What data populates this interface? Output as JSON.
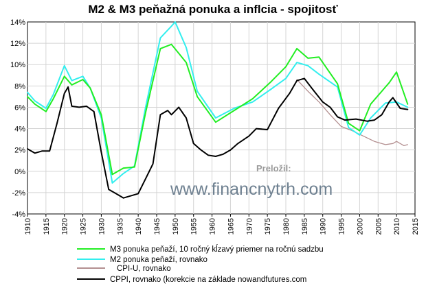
{
  "chart_data": {
    "type": "line",
    "title": "M2 & M3 peňažná ponuka a inflcia - spojitosť",
    "xlabel": "",
    "ylabel": "",
    "xlim": [
      1910,
      2015
    ],
    "ylim": [
      -4,
      14
    ],
    "grid": true,
    "yticks": [
      "-4%",
      "-2%",
      "0%",
      "2%",
      "4%",
      "6%",
      "8%",
      "10%",
      "12%",
      "14%"
    ],
    "ytick_values": [
      -4,
      -2,
      0,
      2,
      4,
      6,
      8,
      10,
      12,
      14
    ],
    "xticks": [
      "1910",
      "1915",
      "1920",
      "1925",
      "1930",
      "1935",
      "1940",
      "1945",
      "1950",
      "1955",
      "1960",
      "1965",
      "1970",
      "1975",
      "1980",
      "1985",
      "1990",
      "1995",
      "2000",
      "2005",
      "2010",
      "2015"
    ],
    "xtick_values": [
      1910,
      1915,
      1920,
      1925,
      1930,
      1935,
      1940,
      1945,
      1950,
      1955,
      1960,
      1965,
      1970,
      1975,
      1980,
      1985,
      1990,
      1995,
      2000,
      2005,
      2010,
      2015
    ],
    "legend_position": "bottom",
    "series": [
      {
        "name": "M3 ponuka peňaží, 10 ročný kĺzavý priemer na ročnú sadzbu",
        "color": "#22ee22",
        "x": [
          1910,
          1912,
          1915,
          1917,
          1920,
          1922,
          1925,
          1927,
          1930,
          1933,
          1936,
          1939,
          1942,
          1946,
          1949,
          1953,
          1956,
          1961,
          1966,
          1971,
          1976,
          1980,
          1983,
          1986,
          1989,
          1994,
          1997,
          2000,
          2003,
          2007,
          2008,
          2010,
          2013
        ],
        "y": [
          7.0,
          6.3,
          5.6,
          6.8,
          8.9,
          8.1,
          8.6,
          7.8,
          5.3,
          -0.3,
          0.3,
          0.4,
          5.5,
          11.5,
          11.9,
          10.2,
          7.0,
          4.6,
          5.7,
          6.8,
          8.4,
          9.8,
          11.5,
          10.6,
          10.7,
          8.2,
          4.5,
          3.8,
          6.3,
          7.9,
          8.3,
          9.3,
          6.3
        ]
      },
      {
        "name": "M2 ponuka peňaží, rovnako",
        "color": "#33eeee",
        "x": [
          1910,
          1912,
          1915,
          1917,
          1920,
          1922,
          1925,
          1927,
          1930,
          1933,
          1936,
          1939,
          1942,
          1946,
          1949,
          1950,
          1953,
          1956,
          1961,
          1966,
          1971,
          1976,
          1980,
          1983,
          1986,
          1989,
          1994,
          1997,
          2000,
          2003,
          2007,
          2010,
          2013
        ],
        "y": [
          7.4,
          6.6,
          5.9,
          7.2,
          9.9,
          8.5,
          8.9,
          7.8,
          5.0,
          -1.1,
          -0.2,
          0.5,
          6.0,
          12.5,
          13.6,
          14.0,
          11.6,
          7.5,
          5.0,
          5.9,
          6.5,
          7.7,
          8.7,
          10.2,
          9.9,
          9.1,
          7.9,
          4.1,
          3.4,
          5.0,
          6.4,
          6.5,
          6.0
        ]
      },
      {
        "name": "CPI-U, rovnako",
        "color": "#b38f90",
        "x": [
          1983,
          1986,
          1989,
          1992,
          1995,
          1998,
          2001,
          2004,
          2007,
          2009,
          2010,
          2012,
          2013
        ],
        "y": [
          8.6,
          7.5,
          6.5,
          5.3,
          4.2,
          3.8,
          3.3,
          2.8,
          2.5,
          2.6,
          2.8,
          2.4,
          2.5
        ]
      },
      {
        "name": "CPPI, rovnako (korekcie na základe nowandfutures.com",
        "color": "#000000",
        "x": [
          1910,
          1912,
          1914,
          1916,
          1918,
          1920,
          1921,
          1922,
          1924,
          1926,
          1928,
          1930,
          1932,
          1934,
          1936,
          1938,
          1940,
          1942,
          1944,
          1946,
          1948,
          1949,
          1951,
          1953,
          1955,
          1957,
          1959,
          1961,
          1963,
          1965,
          1967,
          1970,
          1972,
          1975,
          1978,
          1981,
          1983,
          1985,
          1987,
          1990,
          1992,
          1994,
          1996,
          1999,
          2002,
          2004,
          2006,
          2008,
          2009,
          2011,
          2013
        ],
        "y": [
          2.1,
          1.7,
          1.9,
          1.9,
          4.5,
          7.3,
          7.9,
          6.1,
          6.0,
          6.1,
          5.6,
          1.8,
          -1.7,
          -2.1,
          -2.5,
          -2.3,
          -2.1,
          -0.7,
          0.7,
          5.3,
          5.7,
          5.3,
          6.0,
          5.0,
          2.6,
          2.0,
          1.5,
          1.4,
          1.6,
          2.0,
          2.6,
          3.3,
          4.0,
          3.9,
          5.9,
          7.3,
          8.5,
          8.7,
          7.8,
          6.5,
          6.0,
          5.1,
          4.8,
          4.9,
          4.7,
          4.8,
          5.3,
          6.5,
          6.9,
          5.9,
          5.8
        ]
      }
    ],
    "annotations": [
      "Preložil:",
      "www.financnytrh.com"
    ]
  }
}
